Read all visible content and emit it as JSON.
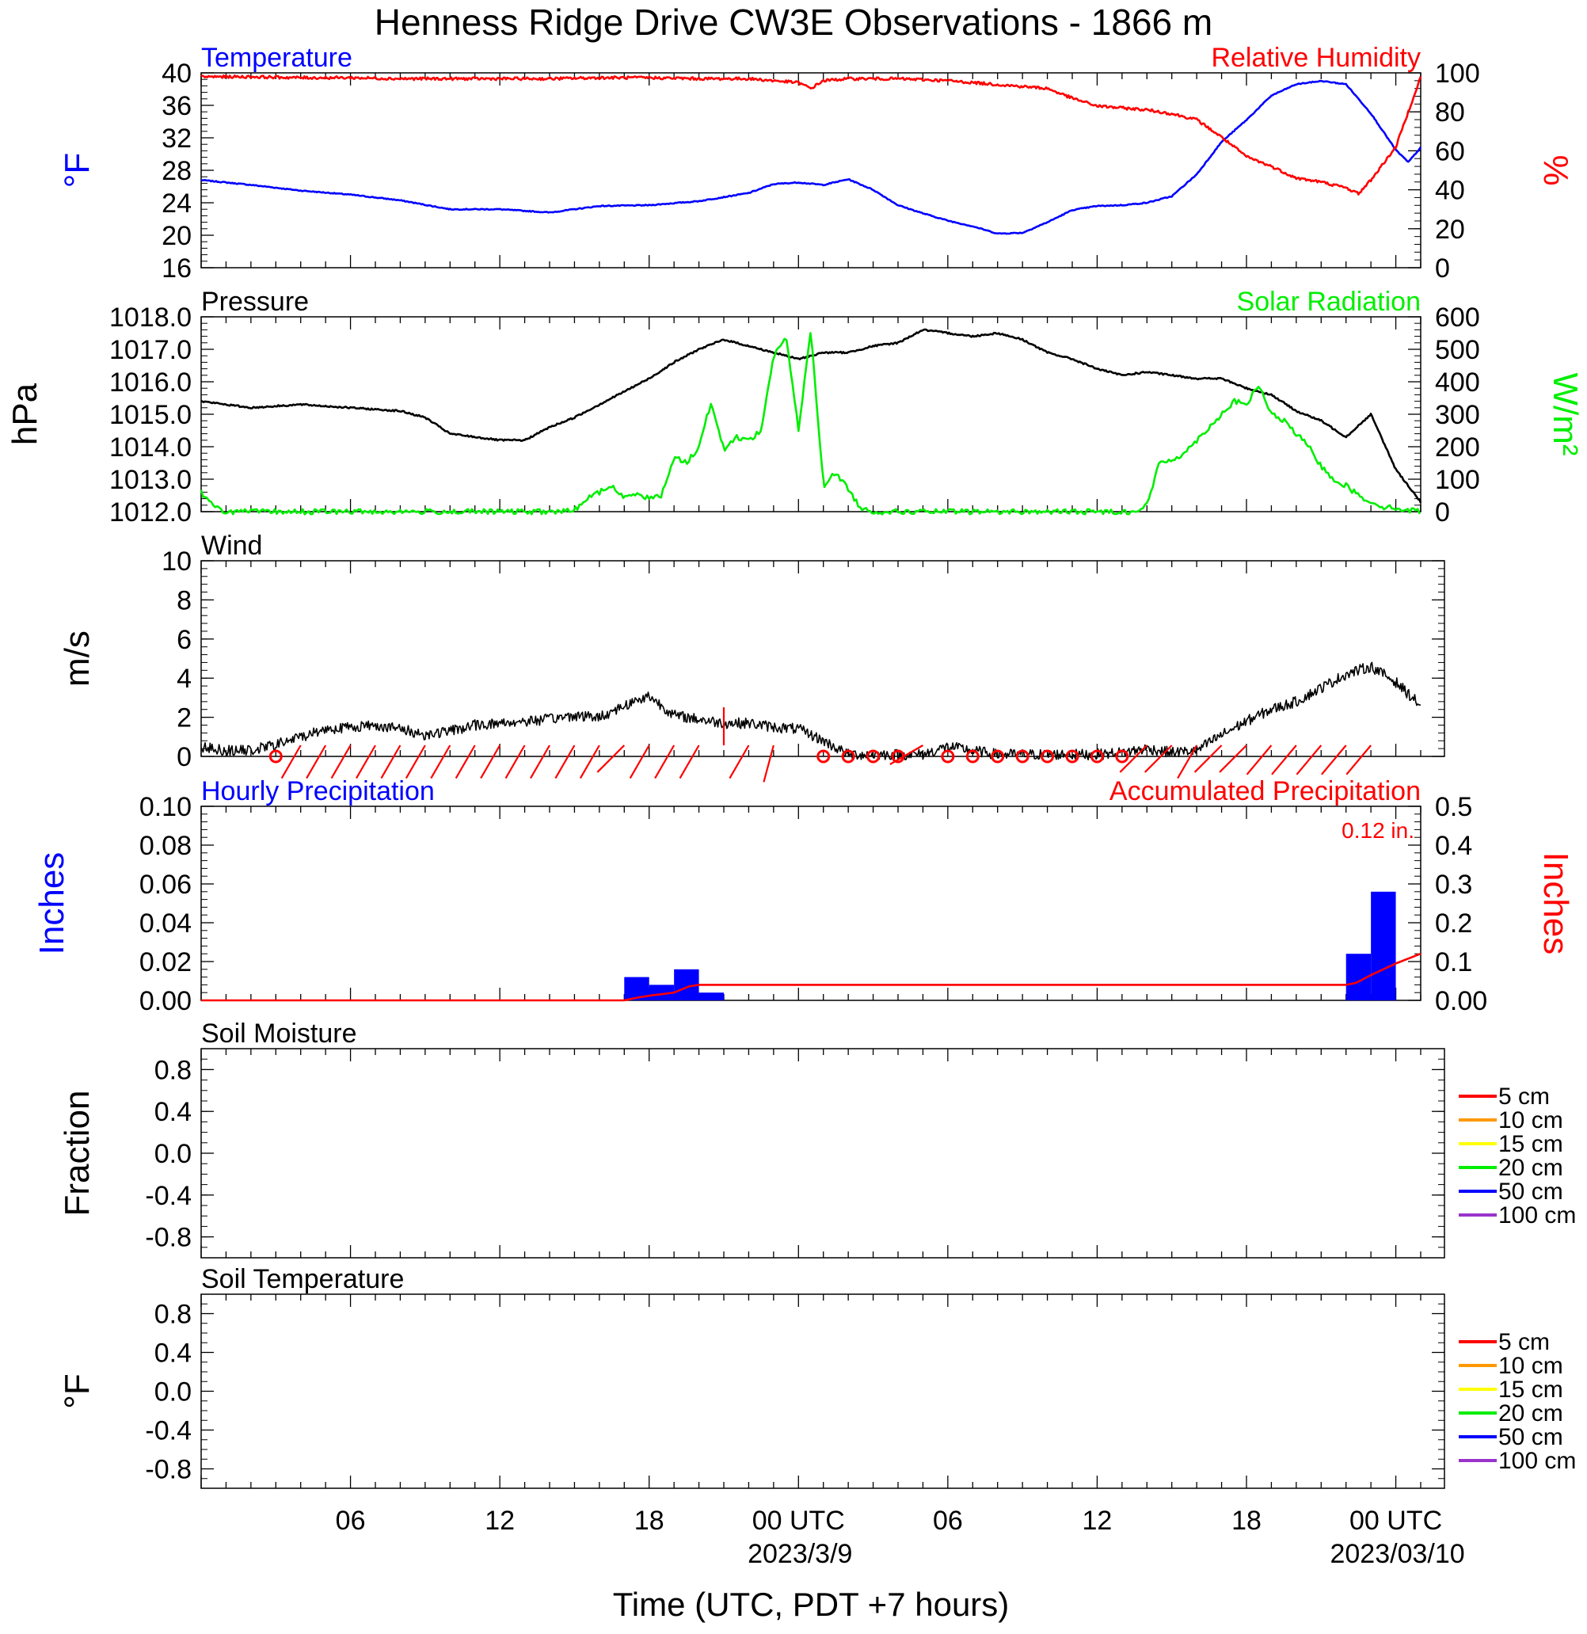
{
  "page": {
    "title": "Henness Ridge Drive CW3E Observations - 1866 m",
    "xlabel": "Time (UTC, PDT +7 hours)",
    "x_ticks": [
      {
        "hour": 6,
        "label": "06"
      },
      {
        "hour": 12,
        "label": "12"
      },
      {
        "hour": 18,
        "label": "18"
      },
      {
        "hour": 24,
        "label": "00 UTC"
      },
      {
        "hour": 30,
        "label": "06"
      },
      {
        "hour": 36,
        "label": "12"
      },
      {
        "hour": 42,
        "label": "18"
      },
      {
        "hour": 48,
        "label": "00 UTC"
      }
    ],
    "date_labels": [
      {
        "hour": 24,
        "label": "2023/3/9"
      },
      {
        "hour": 48,
        "label": "2023/03/10"
      }
    ],
    "x_range_hours": [
      0,
      49
    ]
  },
  "colors": {
    "blue": "#0000ff",
    "red": "#ff0000",
    "green": "#00ee00",
    "black": "#000000",
    "orange": "#ff9900",
    "yellow": "#ffff00",
    "purple": "#9933cc"
  },
  "chart_data": [
    {
      "type": "line",
      "title_left": "Temperature",
      "title_right": "Relative Humidity",
      "ylabel_left": "°F",
      "ylabel_right": "%",
      "ylim_left": [
        16,
        40
      ],
      "ylim_right": [
        0,
        100
      ],
      "yticks_left": [
        "16",
        "20",
        "24",
        "28",
        "32",
        "36",
        "40"
      ],
      "yticks_right": [
        "0",
        "20",
        "40",
        "60",
        "80",
        "100"
      ],
      "series": [
        {
          "name": "Temperature",
          "axis": "left",
          "color": "blue",
          "x": [
            0,
            2,
            4,
            6,
            8,
            10,
            12,
            14,
            16,
            18,
            20,
            22,
            23,
            24,
            25,
            26,
            27,
            28,
            29,
            30,
            31,
            32,
            33,
            34,
            35,
            36,
            37,
            38,
            39,
            40,
            41,
            42,
            43,
            44,
            45,
            46,
            47,
            48,
            48.5,
            49
          ],
          "y": [
            26.8,
            26.2,
            25.5,
            25.0,
            24.3,
            23.2,
            23.2,
            22.8,
            23.6,
            23.7,
            24.2,
            25.2,
            26.3,
            26.5,
            26.2,
            26.9,
            25.6,
            23.7,
            22.7,
            21.8,
            21.1,
            20.2,
            20.3,
            21.6,
            23.1,
            23.6,
            23.7,
            24.0,
            24.8,
            27.5,
            31.5,
            34.2,
            37.2,
            38.6,
            39.0,
            38.6,
            35.0,
            30.5,
            29.0,
            30.8
          ]
        },
        {
          "name": "Relative Humidity",
          "axis": "right",
          "color": "red",
          "x": [
            0,
            2,
            4,
            6,
            8,
            10,
            12,
            14,
            16,
            18,
            20,
            22,
            24,
            24.5,
            25,
            26,
            28,
            30,
            32,
            34,
            35,
            36,
            37,
            38,
            39,
            40,
            41,
            42,
            43,
            44,
            45,
            46,
            46.5,
            47,
            48,
            49
          ],
          "y": [
            98,
            98,
            97.5,
            97.5,
            97,
            97,
            97,
            97,
            97.5,
            97.5,
            97,
            97,
            95,
            92,
            96,
            97,
            97,
            96,
            94,
            92,
            87,
            83,
            82,
            81,
            79,
            76,
            67,
            57,
            52,
            46,
            44,
            41,
            38,
            45,
            62,
            98
          ]
        }
      ]
    },
    {
      "type": "line",
      "title_left": "Pressure",
      "title_right": "Solar Radiation",
      "ylabel_left": "hPa",
      "ylabel_right": "W/m²",
      "ylim_left": [
        1012.0,
        1018.0
      ],
      "ylim_right": [
        0,
        600
      ],
      "yticks_left": [
        "1012.0",
        "1013.0",
        "1014.0",
        "1015.0",
        "1016.0",
        "1017.0",
        "1018.0"
      ],
      "yticks_right": [
        "0",
        "100",
        "200",
        "300",
        "400",
        "500",
        "600"
      ],
      "series": [
        {
          "name": "Pressure",
          "axis": "left",
          "color": "black",
          "x": [
            0,
            2,
            4,
            6,
            8,
            9,
            10,
            11,
            12,
            13,
            14,
            15,
            16,
            17,
            18,
            19,
            20,
            21,
            22,
            23,
            24,
            25,
            26,
            27,
            28,
            29,
            30,
            31,
            32,
            33,
            34,
            35,
            36,
            37,
            38,
            39,
            40,
            41,
            42,
            43,
            44,
            45,
            46,
            47,
            48,
            49
          ],
          "y": [
            1015.4,
            1015.2,
            1015.3,
            1015.2,
            1015.1,
            1014.9,
            1014.4,
            1014.3,
            1014.2,
            1014.2,
            1014.6,
            1014.9,
            1015.3,
            1015.7,
            1016.1,
            1016.6,
            1017.0,
            1017.3,
            1017.1,
            1016.9,
            1016.7,
            1016.9,
            1016.9,
            1017.1,
            1017.2,
            1017.6,
            1017.5,
            1017.4,
            1017.5,
            1017.3,
            1016.9,
            1016.7,
            1016.4,
            1016.2,
            1016.3,
            1016.2,
            1016.1,
            1016.1,
            1015.8,
            1015.6,
            1015.1,
            1014.8,
            1014.3,
            1015.0,
            1013.3,
            1012.3
          ]
        },
        {
          "name": "Solar Radiation",
          "axis": "right",
          "color": "green",
          "x": [
            0,
            0.5,
            1,
            2,
            4,
            6,
            8,
            10,
            12,
            13.5,
            14.5,
            15,
            15.5,
            16,
            16.5,
            17,
            17.5,
            18,
            18.5,
            19,
            19.5,
            20,
            20.5,
            21,
            21.5,
            22,
            22.5,
            23,
            23.5,
            24,
            24.5,
            25,
            25.5,
            26,
            26.5,
            27,
            28,
            30,
            32,
            34,
            36,
            37.5,
            38,
            38.5,
            39,
            39.5,
            40,
            40.5,
            41,
            41.5,
            42,
            42.5,
            43,
            43.5,
            44,
            44.5,
            45,
            45.5,
            46,
            46.5,
            47,
            47.5,
            48,
            48.5,
            49
          ],
          "y": [
            60,
            15,
            0,
            0,
            0,
            0,
            0,
            0,
            0,
            0,
            0,
            5,
            40,
            60,
            80,
            40,
            60,
            40,
            50,
            170,
            150,
            200,
            340,
            190,
            230,
            220,
            250,
            480,
            540,
            250,
            560,
            80,
            120,
            70,
            10,
            0,
            0,
            0,
            0,
            0,
            0,
            0,
            20,
            150,
            160,
            180,
            220,
            260,
            300,
            340,
            330,
            390,
            300,
            280,
            240,
            200,
            140,
            100,
            80,
            50,
            30,
            15,
            10,
            5,
            0
          ]
        }
      ]
    },
    {
      "type": "line",
      "title_left": "Wind",
      "ylabel_left": "m/s",
      "ylim_left": [
        0,
        10
      ],
      "yticks_left": [
        "0",
        "2",
        "4",
        "6",
        "8",
        "10"
      ],
      "series": [
        {
          "name": "Wind",
          "axis": "left",
          "color": "black",
          "x": [
            0,
            1,
            2,
            3,
            4,
            5,
            6,
            7,
            8,
            9,
            10,
            11,
            12,
            13,
            14,
            15,
            16,
            17,
            18,
            19,
            20,
            21,
            22,
            23,
            24,
            25,
            26,
            27,
            28,
            29,
            30,
            31,
            32,
            33,
            34,
            35,
            36,
            37,
            38,
            39,
            40,
            41,
            42,
            43,
            44,
            45,
            46,
            47,
            48,
            49
          ],
          "y": [
            0.5,
            0.3,
            0.3,
            0.6,
            1.0,
            1.4,
            1.5,
            1.6,
            1.4,
            1.1,
            1.3,
            1.6,
            1.7,
            1.8,
            1.9,
            2.1,
            2.0,
            2.6,
            3.1,
            2.1,
            1.9,
            1.7,
            1.7,
            1.5,
            1.4,
            0.8,
            0.1,
            0.1,
            0.1,
            0.1,
            0.5,
            0.3,
            0.1,
            0.1,
            0.1,
            0.1,
            0.1,
            0.2,
            0.4,
            0.2,
            0.3,
            1.1,
            1.8,
            2.4,
            2.8,
            3.5,
            4.2,
            4.6,
            3.8,
            2.6
          ]
        }
      ],
      "barbs": [
        {
          "hour": 3,
          "speed": 0.0,
          "dir": 0
        },
        {
          "hour": 4,
          "speed": 1.2,
          "dir": 150
        },
        {
          "hour": 5,
          "speed": 1.4,
          "dir": 150
        },
        {
          "hour": 6,
          "speed": 1.5,
          "dir": 150
        },
        {
          "hour": 7,
          "speed": 1.6,
          "dir": 150
        },
        {
          "hour": 8,
          "speed": 1.5,
          "dir": 150
        },
        {
          "hour": 9,
          "speed": 1.2,
          "dir": 150
        },
        {
          "hour": 10,
          "speed": 1.3,
          "dir": 150
        },
        {
          "hour": 11,
          "speed": 1.6,
          "dir": 150
        },
        {
          "hour": 12,
          "speed": 1.7,
          "dir": 150
        },
        {
          "hour": 13,
          "speed": 1.8,
          "dir": 150
        },
        {
          "hour": 14,
          "speed": 1.9,
          "dir": 150
        },
        {
          "hour": 15,
          "speed": 2.0,
          "dir": 150
        },
        {
          "hour": 16,
          "speed": 2.1,
          "dir": 150
        },
        {
          "hour": 17,
          "speed": 2.6,
          "dir": 135
        },
        {
          "hour": 18,
          "speed": 2.8,
          "dir": 150
        },
        {
          "hour": 19,
          "speed": 2.0,
          "dir": 150
        },
        {
          "hour": 20,
          "speed": 1.8,
          "dir": 150
        },
        {
          "hour": 21,
          "speed": 0.5,
          "dir": 0
        },
        {
          "hour": 22,
          "speed": 1.5,
          "dir": 150
        },
        {
          "hour": 23,
          "speed": 1.4,
          "dir": 165
        },
        {
          "hour": 25,
          "speed": 0.0,
          "dir": 0
        },
        {
          "hour": 26,
          "speed": 0.0,
          "dir": 0
        },
        {
          "hour": 27,
          "speed": 0.0,
          "dir": 0
        },
        {
          "hour": 28,
          "speed": 0.0,
          "dir": 0
        },
        {
          "hour": 29,
          "speed": 0.5,
          "dir": 120
        },
        {
          "hour": 30,
          "speed": 0.0,
          "dir": 0
        },
        {
          "hour": 31,
          "speed": 0.0,
          "dir": 0
        },
        {
          "hour": 32,
          "speed": 0.0,
          "dir": 0
        },
        {
          "hour": 33,
          "speed": 0.0,
          "dir": 0
        },
        {
          "hour": 34,
          "speed": 0.0,
          "dir": 0
        },
        {
          "hour": 35,
          "speed": 0.0,
          "dir": 0
        },
        {
          "hour": 36,
          "speed": 0.4,
          "dir": 0
        },
        {
          "hour": 37,
          "speed": 0.2,
          "dir": 0
        },
        {
          "hour": 38,
          "speed": 0.9,
          "dir": 135
        },
        {
          "hour": 39,
          "speed": 1.5,
          "dir": 135
        },
        {
          "hour": 40,
          "speed": 2.0,
          "dir": 150
        },
        {
          "hour": 41,
          "speed": 2.6,
          "dir": 135
        },
        {
          "hour": 42,
          "speed": 2.9,
          "dir": 135
        },
        {
          "hour": 43,
          "speed": 3.4,
          "dir": 140
        },
        {
          "hour": 44,
          "speed": 3.9,
          "dir": 140
        },
        {
          "hour": 45,
          "speed": 4.3,
          "dir": 140
        },
        {
          "hour": 46,
          "speed": 4.6,
          "dir": 140
        },
        {
          "hour": 47,
          "speed": 3.8,
          "dir": 140
        }
      ]
    },
    {
      "type": "bar",
      "title_left": "Hourly Precipitation",
      "title_right": "Accumulated Precipitation",
      "total_label": "0.12 in.",
      "ylabel_left": "Inches",
      "ylabel_right": "Inches",
      "ylim_left": [
        0,
        0.1
      ],
      "ylim_right": [
        0,
        0.5
      ],
      "yticks_left": [
        "0.00",
        "0.02",
        "0.04",
        "0.06",
        "0.08",
        "0.10"
      ],
      "yticks_right": [
        "0.00",
        "0.1",
        "0.2",
        "0.3",
        "0.4",
        "0.5"
      ],
      "bars": {
        "name": "Hourly Precipitation",
        "color": "blue",
        "start_hour": [
          17,
          18,
          19,
          20,
          46,
          47
        ],
        "values": [
          0.012,
          0.008,
          0.016,
          0.004,
          0.024,
          0.056
        ]
      },
      "series": [
        {
          "name": "Accumulated Precipitation",
          "axis": "right",
          "color": "red",
          "x": [
            0,
            17,
            17.6,
            18,
            19,
            19.6,
            20,
            21,
            46,
            46.4,
            47,
            48,
            49
          ],
          "y": [
            0,
            0,
            0.008,
            0.012,
            0.02,
            0.036,
            0.04,
            0.04,
            0.04,
            0.045,
            0.065,
            0.095,
            0.12
          ]
        }
      ]
    },
    {
      "type": "line",
      "title_left": "Soil Moisture",
      "ylabel_left": "Fraction",
      "ylim_left": [
        -1,
        1
      ],
      "yticks_left": [
        {
          "v": -0.8,
          "label": "-0.8"
        },
        {
          "v": -0.4,
          "label": "-0.4"
        },
        {
          "v": 0.0,
          "label": "0.0"
        },
        {
          "v": 0.4,
          "label": "0.4"
        },
        {
          "v": 0.8,
          "label": "0.8"
        }
      ],
      "legend": [
        {
          "label": "5 cm",
          "color": "red"
        },
        {
          "label": "10 cm",
          "color": "orange"
        },
        {
          "label": "15 cm",
          "color": "yellow"
        },
        {
          "label": "20 cm",
          "color": "green"
        },
        {
          "label": "50 cm",
          "color": "blue"
        },
        {
          "label": "100 cm",
          "color": "purple"
        }
      ]
    },
    {
      "type": "line",
      "title_left": "Soil Temperature",
      "ylabel_left": "°F",
      "ylim_left": [
        -1,
        1
      ],
      "yticks_left": [
        {
          "v": -0.8,
          "label": "-0.8"
        },
        {
          "v": -0.4,
          "label": "-0.4"
        },
        {
          "v": 0.0,
          "label": "0.0"
        },
        {
          "v": 0.4,
          "label": "0.4"
        },
        {
          "v": 0.8,
          "label": "0.8"
        }
      ],
      "legend": [
        {
          "label": "5 cm",
          "color": "red"
        },
        {
          "label": "10 cm",
          "color": "orange"
        },
        {
          "label": "15 cm",
          "color": "yellow"
        },
        {
          "label": "20 cm",
          "color": "green"
        },
        {
          "label": "50 cm",
          "color": "blue"
        },
        {
          "label": "100 cm",
          "color": "purple"
        }
      ]
    }
  ]
}
